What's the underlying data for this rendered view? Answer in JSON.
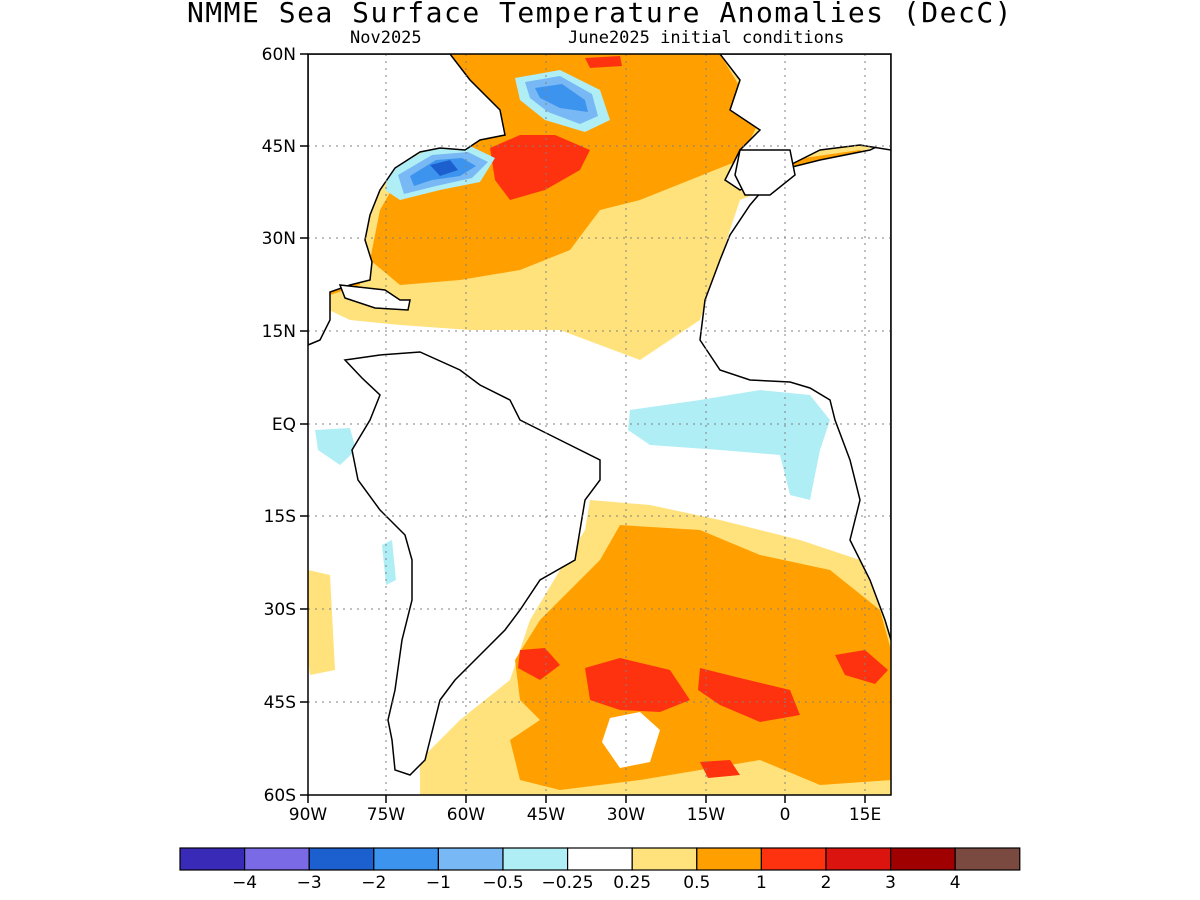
{
  "title": "NMME Sea Surface Temperature Anomalies (DecC)",
  "subtitle_left": "Nov2025",
  "subtitle_right": "June2025 initial conditions",
  "lat_labels": [
    "60N",
    "45N",
    "30N",
    "15N",
    "EQ",
    "15S",
    "30S",
    "45S",
    "60S"
  ],
  "lon_labels": [
    "90W",
    "75W",
    "60W",
    "45W",
    "30W",
    "15W",
    "0",
    "15E"
  ],
  "colorbar": {
    "colors": [
      "#3a2ab8",
      "#7a6ae6",
      "#1c60d0",
      "#3c94ee",
      "#78b8f4",
      "#b0eef6",
      "#ffffff",
      "#ffe27c",
      "#ffa000",
      "#ff3210",
      "#dc1410",
      "#a00000",
      "#7a4a40"
    ],
    "labels": [
      "−4",
      "−3",
      "−2",
      "−1",
      "−0.5",
      "−0.25",
      "0.25",
      "0.5",
      "1",
      "2",
      "3",
      "4"
    ]
  },
  "palette": {
    "pos_light": "#ffe27c",
    "pos_mid": "#ffa000",
    "pos_strong": "#ff3210",
    "neg_light": "#b0eef6",
    "neg_mid": "#78b8f4",
    "neg_strong": "#3c94ee",
    "neg_deep": "#1c60d0"
  }
}
